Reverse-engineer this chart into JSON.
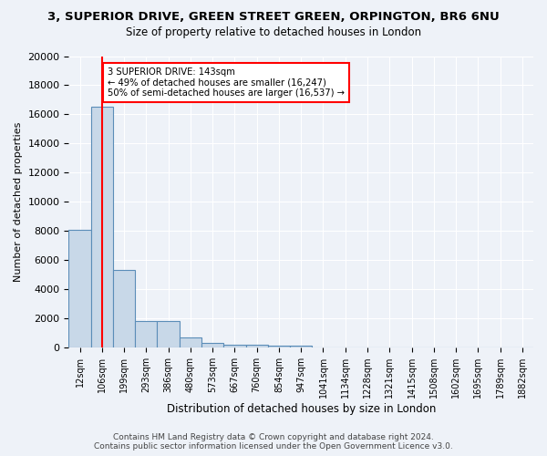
{
  "title": "3, SUPERIOR DRIVE, GREEN STREET GREEN, ORPINGTON, BR6 6NU",
  "subtitle": "Size of property relative to detached houses in London",
  "xlabel": "Distribution of detached houses by size in London",
  "ylabel": "Number of detached properties",
  "bin_labels": [
    "12sqm",
    "106sqm",
    "199sqm",
    "293sqm",
    "386sqm",
    "480sqm",
    "573sqm",
    "667sqm",
    "760sqm",
    "854sqm",
    "947sqm",
    "1041sqm",
    "1134sqm",
    "1228sqm",
    "1321sqm",
    "1415sqm",
    "1508sqm",
    "1602sqm",
    "1695sqm",
    "1789sqm",
    "1882sqm"
  ],
  "bar_values": [
    8100,
    16500,
    5300,
    1850,
    1850,
    700,
    300,
    220,
    210,
    170,
    150,
    0,
    0,
    0,
    0,
    0,
    0,
    0,
    0,
    0,
    0
  ],
  "bar_color": "#c8d8e8",
  "bar_edge_color": "#5b8db8",
  "red_line_x": 1,
  "annotation_text": "3 SUPERIOR DRIVE: 143sqm\n← 49% of detached houses are smaller (16,247)\n50% of semi-detached houses are larger (16,537) →",
  "annotation_box_color": "white",
  "annotation_box_edge": "red",
  "ylim": [
    0,
    20000
  ],
  "yticks": [
    0,
    2000,
    4000,
    6000,
    8000,
    10000,
    12000,
    14000,
    16000,
    18000,
    20000
  ],
  "footer_line1": "Contains HM Land Registry data © Crown copyright and database right 2024.",
  "footer_line2": "Contains public sector information licensed under the Open Government Licence v3.0.",
  "bg_color": "#eef2f8",
  "grid_color": "#ffffff"
}
